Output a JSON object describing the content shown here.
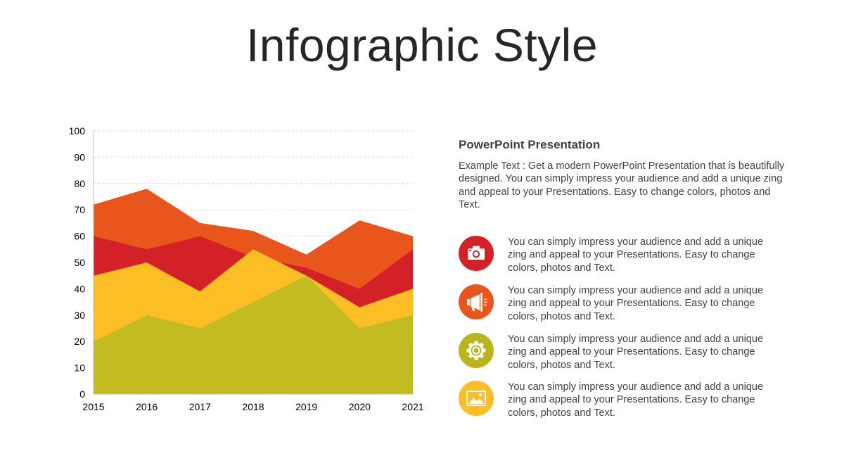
{
  "title": "Infographic Style",
  "panel": {
    "heading": "PowerPoint Presentation",
    "text": "Example Text : Get a modern PowerPoint  Presentation that is beautifully designed. You can simply impress your audience and add a unique zing and appeal to your Presentations. Easy to change colors, photos and Text."
  },
  "features": [
    {
      "icon": "camera-icon",
      "color": "#D42027",
      "text": "You can simply impress your audience and add a unique zing and appeal to your Presentations. Easy to change colors, photos and Text."
    },
    {
      "icon": "megaphone-icon",
      "color": "#E8561B",
      "text": "You can simply impress your audience and add a unique zing and appeal to your Presentations. Easy to change colors, photos and Text."
    },
    {
      "icon": "gear-icon",
      "color": "#B9B51D",
      "text": "You can simply impress your audience and add a unique zing and appeal to your Presentations. Easy to change colors, photos and Text."
    },
    {
      "icon": "image-icon",
      "color": "#FBBF25",
      "text": "You can simply impress your audience and add a unique zing and appeal to your Presentations. Easy to change colors, photos and Text."
    }
  ],
  "chart_data": {
    "type": "area",
    "categories": [
      "2015",
      "2016",
      "2017",
      "2018",
      "2019",
      "2020",
      "2021"
    ],
    "ylim": [
      0,
      100
    ],
    "yticks": [
      0,
      10,
      20,
      30,
      40,
      50,
      60,
      70,
      80,
      90,
      100
    ],
    "grid": true,
    "series": [
      {
        "color": "#E8561B",
        "values": [
          72,
          78,
          65,
          62,
          53,
          66,
          60
        ]
      },
      {
        "color": "#D42027",
        "values": [
          60,
          55,
          60,
          52,
          48,
          40,
          55
        ]
      },
      {
        "color": "#FBBF25",
        "values": [
          45,
          50,
          39,
          55,
          45,
          33,
          40
        ]
      },
      {
        "color": "#C2BC22",
        "values": [
          20,
          30,
          25,
          35,
          45,
          25,
          30
        ]
      }
    ]
  }
}
